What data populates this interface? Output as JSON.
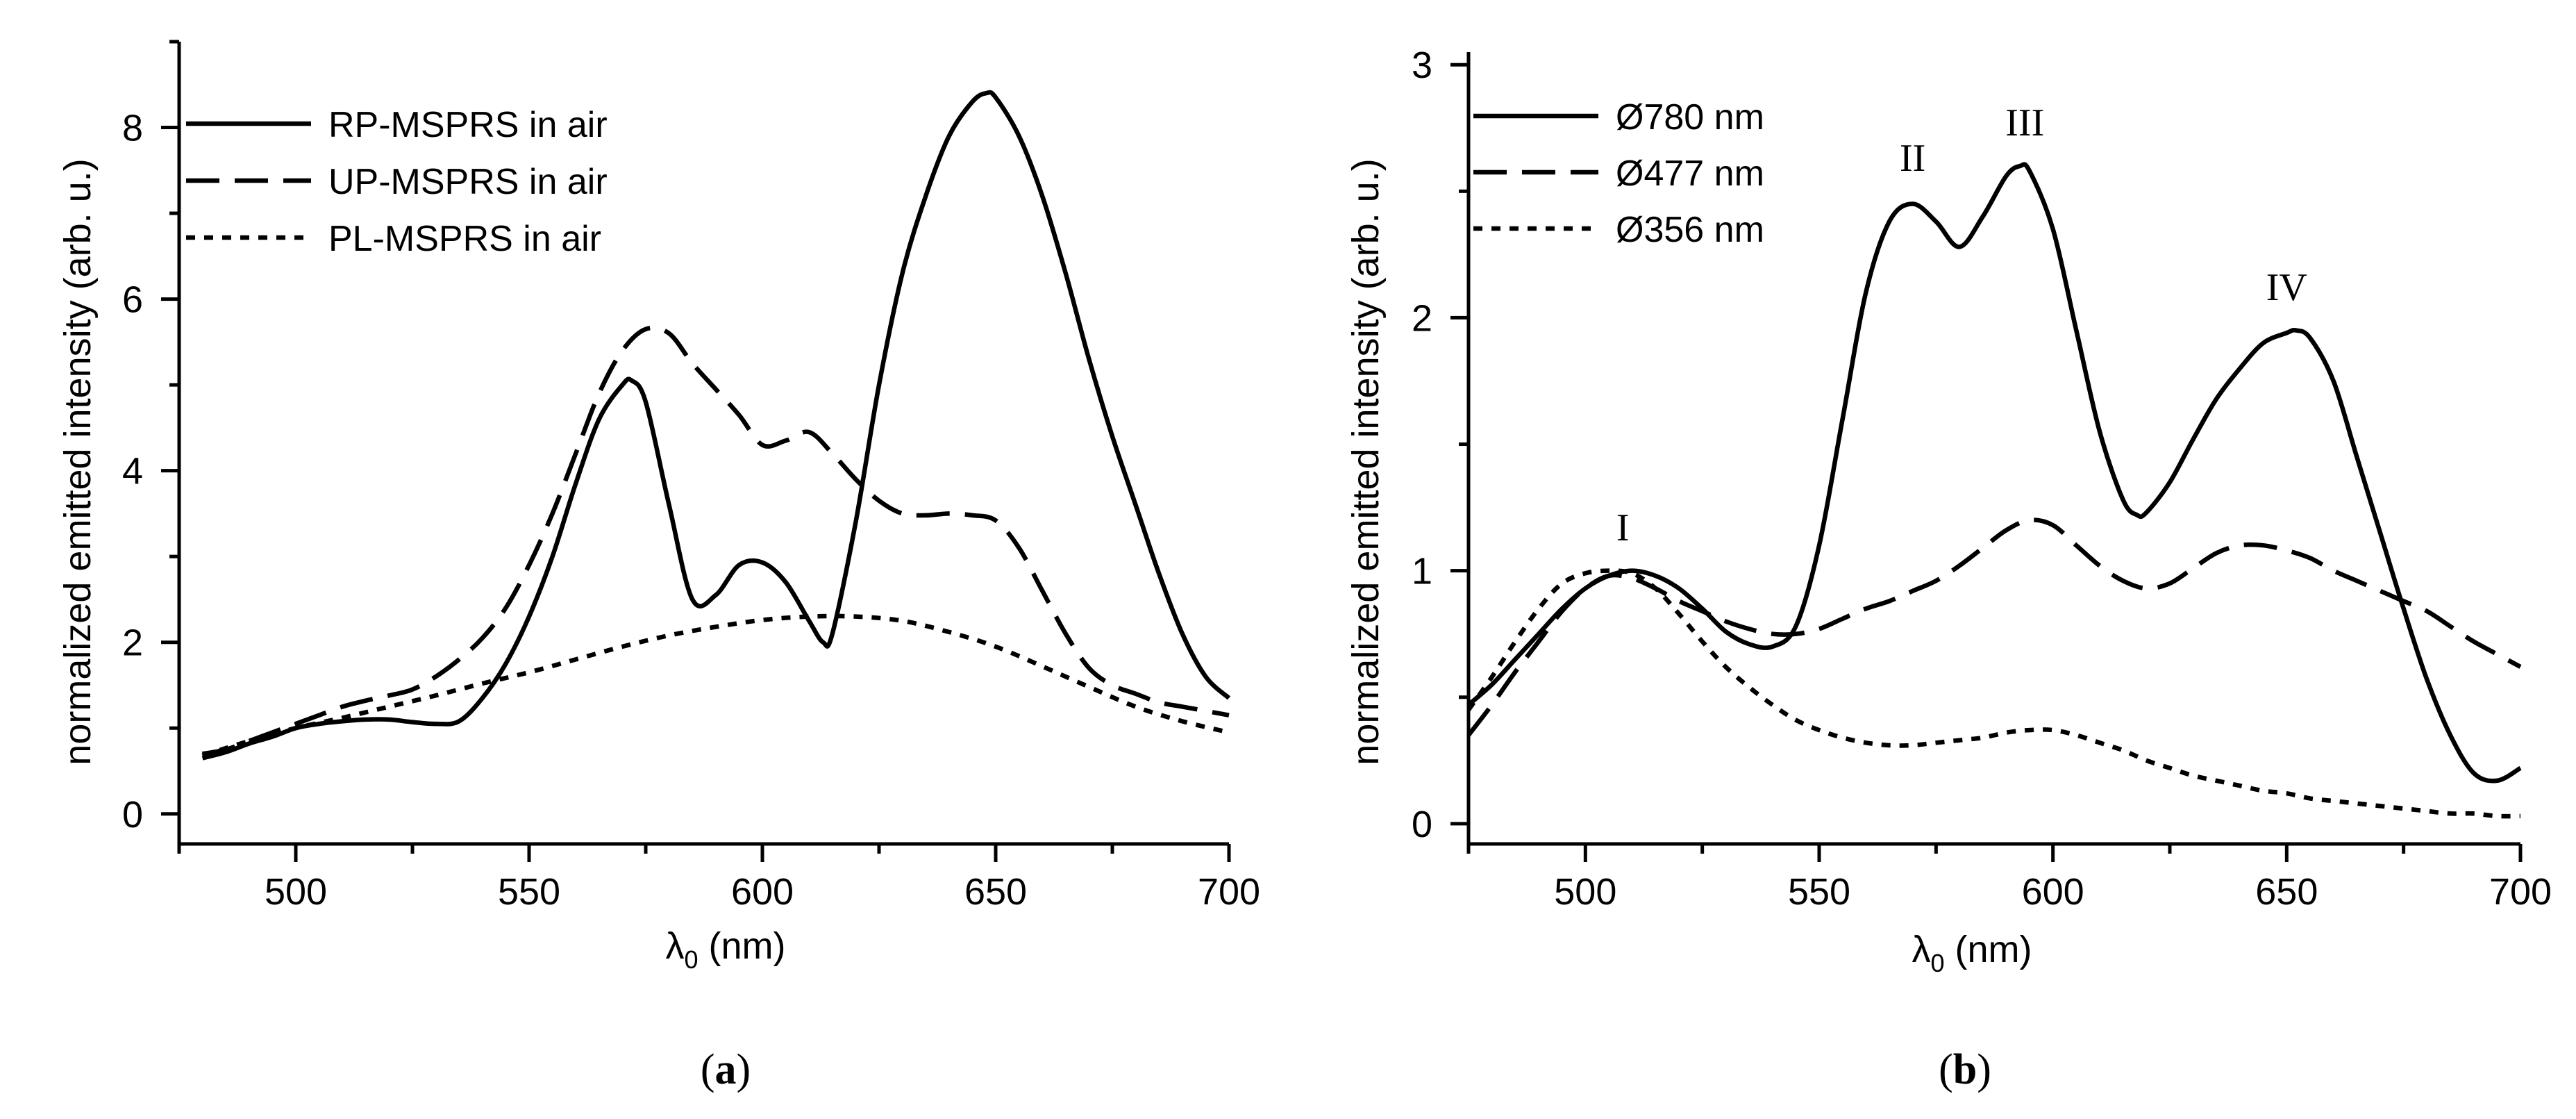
{
  "chart_data": [
    {
      "type": "line",
      "panel": "a",
      "panel_label": {
        "open": "(",
        "letter": "a",
        "close": ")"
      },
      "xlabel": {
        "lambda": "λ",
        "sub": "0",
        "unit": " (nm)"
      },
      "ylabel": "normalized emitted intensity (arb. u.)",
      "xlim": [
        475,
        700
      ],
      "ylim": [
        -0.35,
        9.0
      ],
      "xticks": [
        500,
        550,
        600,
        650,
        700
      ],
      "yticks": [
        0,
        2,
        4,
        6,
        8
      ],
      "legend_position": "top-left",
      "series": [
        {
          "name": "RP-MSPRS in air",
          "dash": "solid",
          "x": [
            480,
            485,
            490,
            495,
            500,
            505,
            510,
            515,
            520,
            525,
            530,
            535,
            540,
            545,
            550,
            555,
            560,
            565,
            570,
            572,
            575,
            580,
            585,
            590,
            595,
            600,
            605,
            610,
            613,
            615,
            620,
            625,
            630,
            635,
            640,
            645,
            648,
            650,
            655,
            660,
            665,
            670,
            675,
            680,
            685,
            690,
            695,
            700
          ],
          "y": [
            0.65,
            0.72,
            0.82,
            0.9,
            1.0,
            1.05,
            1.08,
            1.1,
            1.1,
            1.07,
            1.05,
            1.08,
            1.35,
            1.75,
            2.3,
            3.0,
            3.85,
            4.6,
            5.0,
            5.05,
            4.8,
            3.6,
            2.5,
            2.55,
            2.9,
            2.93,
            2.7,
            2.25,
            2.0,
            2.1,
            3.4,
            5.0,
            6.3,
            7.2,
            7.9,
            8.3,
            8.4,
            8.35,
            7.9,
            7.2,
            6.3,
            5.3,
            4.4,
            3.6,
            2.8,
            2.1,
            1.6,
            1.35
          ]
        },
        {
          "name": "UP-MSPRS in air",
          "dash": "dashed",
          "x": [
            480,
            485,
            490,
            495,
            500,
            505,
            510,
            515,
            520,
            525,
            530,
            535,
            540,
            545,
            550,
            555,
            560,
            565,
            570,
            575,
            580,
            585,
            590,
            595,
            600,
            605,
            610,
            615,
            620,
            625,
            630,
            635,
            640,
            645,
            650,
            655,
            660,
            665,
            670,
            675,
            680,
            685,
            690,
            695,
            700
          ],
          "y": [
            0.7,
            0.75,
            0.85,
            0.95,
            1.05,
            1.15,
            1.25,
            1.32,
            1.38,
            1.45,
            1.6,
            1.8,
            2.05,
            2.4,
            2.9,
            3.5,
            4.2,
            4.9,
            5.4,
            5.65,
            5.6,
            5.25,
            4.95,
            4.65,
            4.3,
            4.35,
            4.45,
            4.2,
            3.9,
            3.65,
            3.5,
            3.48,
            3.5,
            3.48,
            3.42,
            3.1,
            2.6,
            2.1,
            1.7,
            1.5,
            1.4,
            1.3,
            1.25,
            1.2,
            1.15
          ]
        },
        {
          "name": "PL-MSPRS in air",
          "dash": "dotted",
          "x": [
            480,
            490,
            500,
            510,
            520,
            530,
            540,
            550,
            560,
            570,
            580,
            590,
            600,
            610,
            620,
            630,
            640,
            650,
            660,
            670,
            680,
            690,
            700
          ],
          "y": [
            0.68,
            0.85,
            1.0,
            1.12,
            1.25,
            1.38,
            1.52,
            1.65,
            1.8,
            1.95,
            2.08,
            2.18,
            2.26,
            2.3,
            2.3,
            2.25,
            2.12,
            1.95,
            1.72,
            1.48,
            1.25,
            1.08,
            0.95
          ]
        }
      ]
    },
    {
      "type": "line",
      "panel": "b",
      "panel_label": {
        "open": "(",
        "letter": "b",
        "close": ")"
      },
      "xlabel": {
        "lambda": "λ",
        "sub": "0",
        "unit": " (nm)"
      },
      "ylabel": "normalized emitted intensity (arb. u.)",
      "xlim": [
        475,
        700
      ],
      "ylim": [
        -0.08,
        3.05
      ],
      "xticks": [
        500,
        550,
        600,
        650,
        700
      ],
      "yticks": [
        0,
        1,
        2,
        3
      ],
      "legend_position": "top-left",
      "annotations": [
        {
          "text": "I",
          "x": 508,
          "y": 1.12
        },
        {
          "text": "II",
          "x": 570,
          "y": 2.58
        },
        {
          "text": "III",
          "x": 594,
          "y": 2.72
        },
        {
          "text": "IV",
          "x": 650,
          "y": 2.07
        }
      ],
      "series": [
        {
          "name": "Ø780 nm",
          "dash": "solid",
          "x": [
            475,
            480,
            485,
            490,
            495,
            500,
            505,
            510,
            515,
            520,
            525,
            530,
            535,
            540,
            545,
            550,
            555,
            560,
            565,
            570,
            575,
            580,
            585,
            590,
            593,
            595,
            600,
            605,
            610,
            615,
            618,
            620,
            625,
            630,
            635,
            640,
            645,
            650,
            652,
            655,
            660,
            665,
            670,
            675,
            680,
            685,
            690,
            695,
            700
          ],
          "y": [
            0.47,
            0.55,
            0.65,
            0.75,
            0.85,
            0.93,
            0.98,
            1.0,
            0.98,
            0.93,
            0.85,
            0.76,
            0.71,
            0.7,
            0.78,
            1.1,
            1.6,
            2.1,
            2.38,
            2.45,
            2.38,
            2.28,
            2.4,
            2.56,
            2.6,
            2.58,
            2.35,
            1.95,
            1.55,
            1.28,
            1.22,
            1.23,
            1.35,
            1.52,
            1.68,
            1.8,
            1.9,
            1.94,
            1.95,
            1.92,
            1.75,
            1.45,
            1.15,
            0.85,
            0.57,
            0.35,
            0.2,
            0.17,
            0.22
          ]
        },
        {
          "name": "Ø477 nm",
          "dash": "dashed",
          "x": [
            475,
            480,
            485,
            490,
            495,
            500,
            505,
            510,
            515,
            520,
            525,
            530,
            535,
            540,
            545,
            550,
            555,
            560,
            565,
            570,
            575,
            580,
            585,
            590,
            595,
            600,
            605,
            610,
            615,
            620,
            625,
            630,
            635,
            640,
            645,
            650,
            655,
            660,
            665,
            670,
            675,
            680,
            685,
            690,
            695,
            700
          ],
          "y": [
            0.35,
            0.47,
            0.6,
            0.72,
            0.84,
            0.93,
            0.98,
            0.97,
            0.93,
            0.88,
            0.84,
            0.8,
            0.77,
            0.75,
            0.75,
            0.77,
            0.81,
            0.85,
            0.88,
            0.92,
            0.96,
            1.02,
            1.09,
            1.16,
            1.2,
            1.18,
            1.1,
            1.02,
            0.96,
            0.93,
            0.95,
            1.01,
            1.07,
            1.1,
            1.1,
            1.08,
            1.05,
            1.0,
            0.96,
            0.92,
            0.88,
            0.84,
            0.78,
            0.72,
            0.67,
            0.62
          ]
        },
        {
          "name": "Ø356 nm",
          "dash": "dotted",
          "x": [
            475,
            480,
            485,
            490,
            495,
            500,
            505,
            510,
            515,
            520,
            525,
            530,
            535,
            540,
            545,
            550,
            555,
            560,
            565,
            570,
            575,
            580,
            585,
            590,
            595,
            600,
            605,
            610,
            615,
            620,
            625,
            630,
            635,
            640,
            645,
            650,
            655,
            660,
            665,
            670,
            675,
            680,
            685,
            690,
            695,
            700
          ],
          "y": [
            0.45,
            0.58,
            0.72,
            0.85,
            0.95,
            0.99,
            1.0,
            0.99,
            0.93,
            0.83,
            0.72,
            0.62,
            0.54,
            0.47,
            0.41,
            0.37,
            0.34,
            0.32,
            0.31,
            0.31,
            0.32,
            0.33,
            0.34,
            0.36,
            0.37,
            0.37,
            0.35,
            0.32,
            0.29,
            0.25,
            0.22,
            0.19,
            0.17,
            0.15,
            0.13,
            0.12,
            0.1,
            0.09,
            0.08,
            0.07,
            0.06,
            0.05,
            0.04,
            0.04,
            0.03,
            0.03
          ]
        }
      ]
    }
  ]
}
